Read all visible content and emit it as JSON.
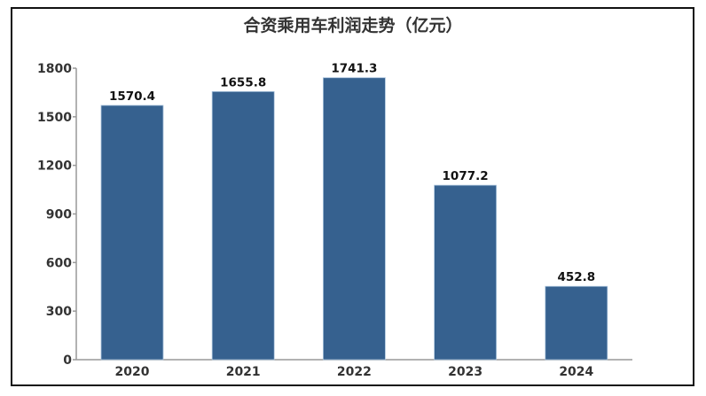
{
  "chart_data": {
    "type": "bar",
    "title": "合资乘用车利润走势（亿元）",
    "xlabel": "",
    "ylabel": "",
    "categories": [
      "2020",
      "2021",
      "2022",
      "2023",
      "2024"
    ],
    "values": [
      1570.4,
      1655.8,
      1741.3,
      1077.2,
      452.8
    ],
    "value_labels": [
      "1570.4",
      "1655.8",
      "1741.3",
      "1077.2",
      "452.8"
    ],
    "ylim": [
      0,
      1800
    ],
    "yticks": [
      "0",
      "300",
      "600",
      "900",
      "1200",
      "1500",
      "1800"
    ],
    "grid": false,
    "legend": "none",
    "bar_color": "#36618f"
  }
}
